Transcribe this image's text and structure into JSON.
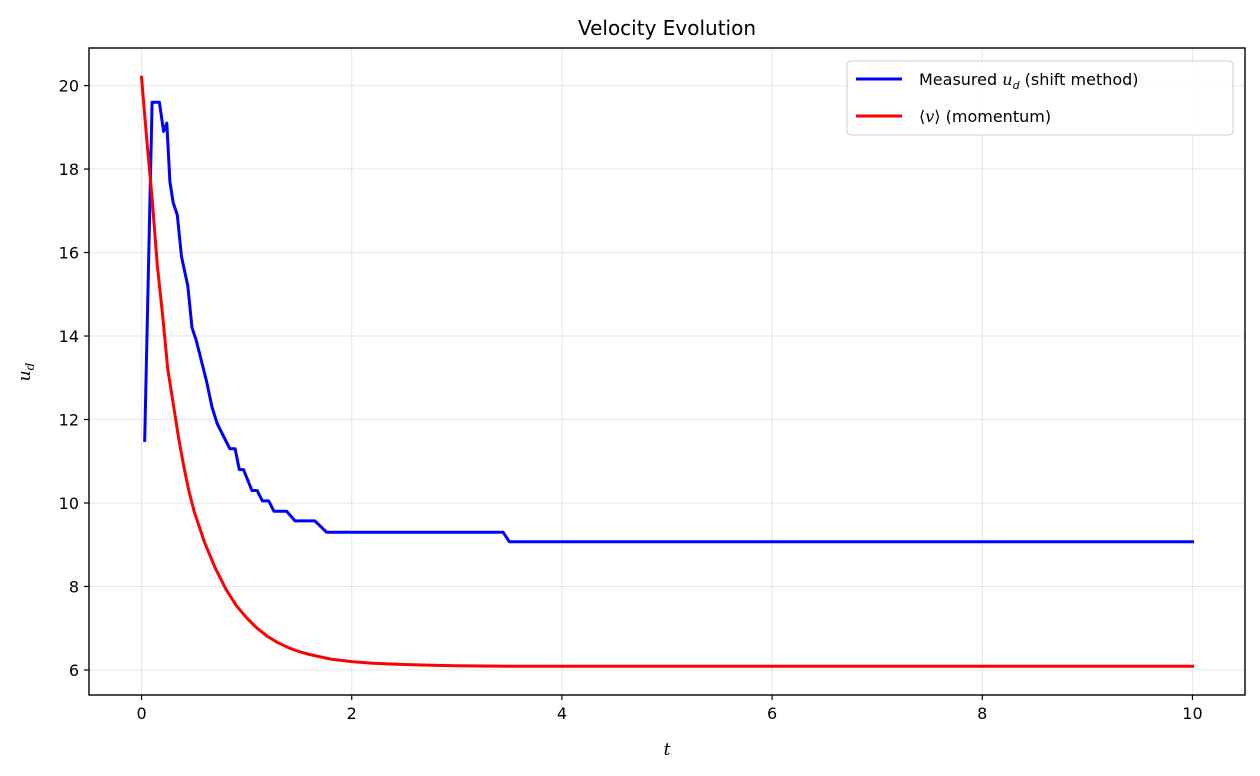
{
  "chart_data": {
    "type": "line",
    "title": "Velocity Evolution",
    "xlabel": "t",
    "ylabel": "u_d",
    "xlim": [
      -0.5,
      10.5
    ],
    "ylim": [
      5.4,
      20.9
    ],
    "xticks": [
      0,
      2,
      4,
      6,
      8,
      10
    ],
    "yticks": [
      6,
      8,
      10,
      12,
      14,
      16,
      18,
      20
    ],
    "grid": true,
    "legend_position": "top-right",
    "series": [
      {
        "name": "Measured u_d (shift method)",
        "legend_text": "Measured ",
        "legend_math": "u",
        "legend_sub": "d",
        "legend_suffix": " (shift method)",
        "color": "#0000ff",
        "x": [
          0.03,
          0.1,
          0.12,
          0.13,
          0.17,
          0.21,
          0.24,
          0.27,
          0.3,
          0.34,
          0.38,
          0.44,
          0.48,
          0.52,
          0.58,
          0.62,
          0.67,
          0.72,
          0.78,
          0.84,
          0.89,
          0.93,
          0.97,
          1.01,
          1.05,
          1.1,
          1.15,
          1.21,
          1.26,
          1.33,
          1.38,
          1.46,
          1.5,
          1.56,
          1.59,
          1.65,
          1.76,
          1.82,
          1.86,
          2.2,
          3.44,
          3.5,
          3.9,
          10.0
        ],
        "y": [
          11.5,
          19.6,
          19.6,
          19.6,
          19.6,
          18.9,
          19.1,
          17.7,
          17.2,
          16.9,
          15.9,
          15.2,
          14.2,
          13.9,
          13.3,
          12.9,
          12.3,
          11.9,
          11.6,
          11.3,
          11.3,
          10.8,
          10.8,
          10.55,
          10.3,
          10.3,
          10.05,
          10.05,
          9.8,
          9.8,
          9.8,
          9.57,
          9.57,
          9.57,
          9.57,
          9.57,
          9.3,
          9.3,
          9.3,
          9.3,
          9.3,
          9.07,
          9.07,
          9.07
        ]
      },
      {
        "name": "⟨v⟩ (momentum)",
        "legend_text": "⟨",
        "legend_math": "v",
        "legend_sub": "",
        "legend_suffix": "⟩ (momentum)",
        "color": "#ff0000",
        "x": [
          0.0,
          0.05,
          0.1,
          0.15,
          0.2,
          0.25,
          0.3,
          0.35,
          0.4,
          0.45,
          0.5,
          0.6,
          0.7,
          0.8,
          0.9,
          1.0,
          1.1,
          1.2,
          1.3,
          1.4,
          1.5,
          1.6,
          1.8,
          2.0,
          2.2,
          2.5,
          2.8,
          3.0,
          3.5,
          4.0,
          5.0,
          6.0,
          8.0,
          10.0
        ],
        "y": [
          20.2,
          18.7,
          17.3,
          15.7,
          14.5,
          13.2,
          12.4,
          11.6,
          10.9,
          10.3,
          9.8,
          9.05,
          8.45,
          7.95,
          7.55,
          7.25,
          7.0,
          6.8,
          6.65,
          6.53,
          6.44,
          6.37,
          6.26,
          6.2,
          6.16,
          6.13,
          6.11,
          6.1,
          6.09,
          6.09,
          6.09,
          6.09,
          6.09,
          6.09
        ]
      }
    ]
  }
}
